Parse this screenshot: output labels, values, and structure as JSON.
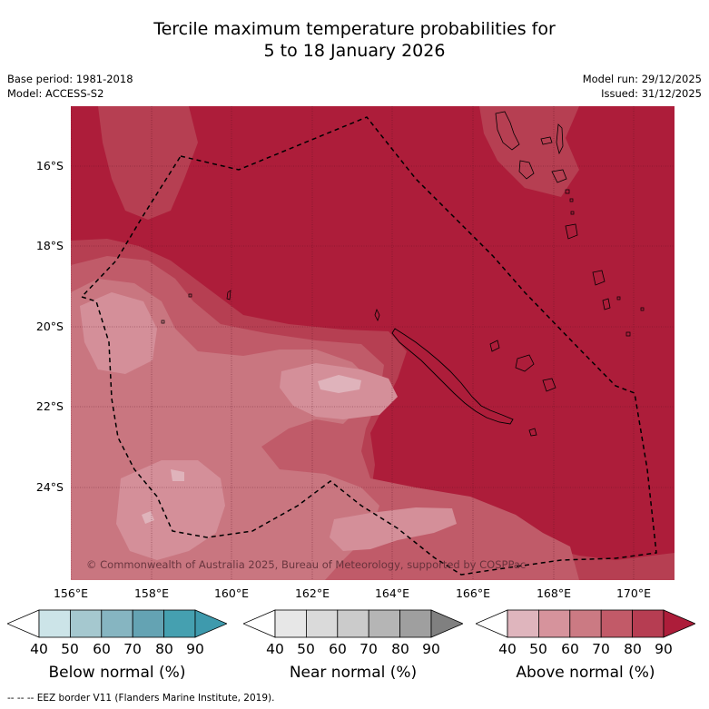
{
  "title": {
    "line1": "Tercile maximum temperature probabilities for",
    "line2": "5 to 18 January 2026"
  },
  "meta_left": {
    "base_period": "Base period: 1981-2018",
    "model": "Model: ACCESS-S2"
  },
  "meta_right": {
    "model_run": "Model run: 29/12/2025",
    "issued": "Issued: 31/12/2025"
  },
  "map": {
    "latitude_labels": [
      "16°S",
      "18°S",
      "20°S",
      "22°S",
      "24°S"
    ],
    "longitude_labels": [
      "156°E",
      "158°E",
      "160°E",
      "162°E",
      "164°E",
      "166°E",
      "168°E",
      "170°E"
    ],
    "copyright": "© Commonwealth of Australia 2025, Bureau of Meteorology, supported by COSPPac",
    "colors": {
      "above_40": "#dfb3bb",
      "above_50": "#d48f99",
      "above_60": "#c97680",
      "above_70": "#c05b69",
      "above_80": "#b63f52",
      "above_90": "#ad1d3a"
    }
  },
  "legend": {
    "tick_labels": [
      "40",
      "50",
      "60",
      "70",
      "80",
      "90"
    ],
    "below": {
      "title": "Below normal (%)",
      "colors": [
        "#ffffff",
        "#cce4e8",
        "#a5c8cf",
        "#86b5c1",
        "#64a3b3",
        "#45a0b0",
        "#3e9aad"
      ]
    },
    "near": {
      "title": "Near normal (%)",
      "colors": [
        "#ffffff",
        "#e7e7e7",
        "#dadada",
        "#cbcbcb",
        "#b5b5b5",
        "#9f9f9f",
        "#808080"
      ]
    },
    "above": {
      "title": "Above normal (%)",
      "colors": [
        "#ffffff",
        "#dfb5bd",
        "#d6939c",
        "#cb7a83",
        "#c25a68",
        "#b63d52",
        "#ad1d3a"
      ]
    }
  },
  "footer": "--  --  -- EEZ border V11 (Flanders Marine Institute, 2019)."
}
